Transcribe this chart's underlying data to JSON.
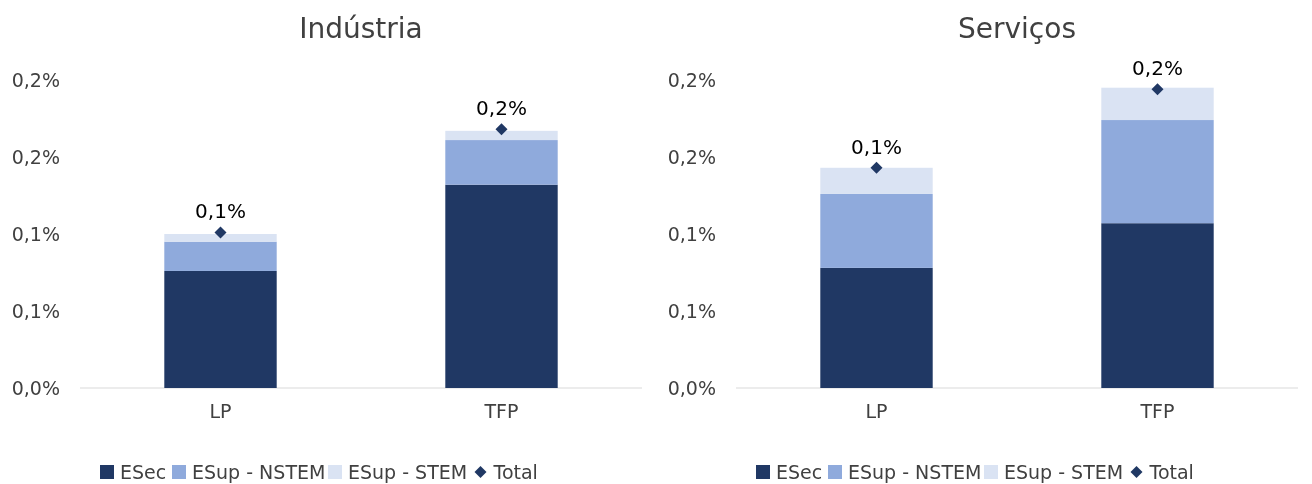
{
  "chart_data": [
    {
      "type": "bar",
      "title": "Indústria",
      "categories": [
        "LP",
        "TFP"
      ],
      "stacked": true,
      "ylim": [
        0,
        0.2
      ],
      "yticks": [
        {
          "value": 0,
          "label": "0,0%"
        },
        {
          "value": 0.05,
          "label": "0,1%"
        },
        {
          "value": 0.1,
          "label": "0,1%"
        },
        {
          "value": 0.15,
          "label": "0,2%"
        },
        {
          "value": 0.2,
          "label": "0,2%"
        }
      ],
      "legend": "bottom",
      "series": [
        {
          "name": "ESec",
          "color": "#203864",
          "values": [
            0.076,
            0.132
          ]
        },
        {
          "name": "ESup - NSTEM",
          "color": "#8faadc",
          "values": [
            0.019,
            0.029
          ]
        },
        {
          "name": "ESup - STEM",
          "color": "#dae3f3",
          "values": [
            0.005,
            0.006
          ]
        },
        {
          "name": "Total",
          "type": "scatter",
          "marker": "diamond",
          "color": "#203864",
          "x": [
            "LP",
            "TFP"
          ],
          "values": [
            0.101,
            0.168
          ],
          "value_labels": [
            "0,1%",
            "0,2%"
          ]
        }
      ]
    },
    {
      "type": "bar",
      "title": "Serviços",
      "categories": [
        "LP",
        "TFP"
      ],
      "stacked": true,
      "ylim": [
        0,
        0.2
      ],
      "yticks": [
        {
          "value": 0,
          "label": "0,0%"
        },
        {
          "value": 0.05,
          "label": "0,1%"
        },
        {
          "value": 0.1,
          "label": "0,1%"
        },
        {
          "value": 0.15,
          "label": "0,2%"
        },
        {
          "value": 0.2,
          "label": "0,2%"
        }
      ],
      "legend": "bottom",
      "series": [
        {
          "name": "ESec",
          "color": "#203864",
          "values": [
            0.078,
            0.107
          ]
        },
        {
          "name": "ESup - NSTEM",
          "color": "#8faadc",
          "values": [
            0.048,
            0.067
          ]
        },
        {
          "name": "ESup - STEM",
          "color": "#dae3f3",
          "values": [
            0.017,
            0.021
          ]
        },
        {
          "name": "Total",
          "type": "scatter",
          "marker": "diamond",
          "color": "#203864",
          "x": [
            "LP",
            "TFP"
          ],
          "values": [
            0.143,
            0.194
          ],
          "value_labels": [
            "0,1%",
            "0,2%"
          ]
        }
      ]
    }
  ]
}
